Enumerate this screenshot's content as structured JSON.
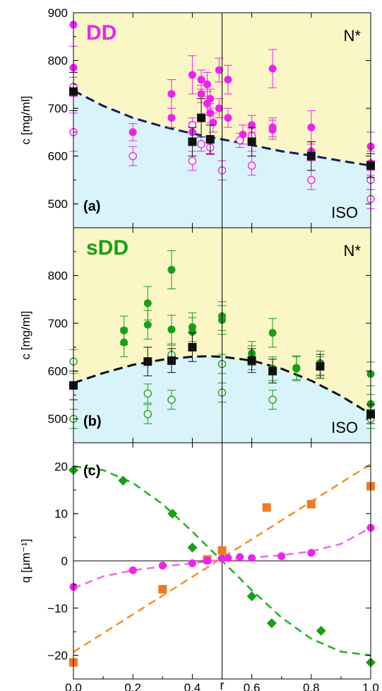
{
  "colors": {
    "nematic_bg": "#fbf6c6",
    "iso_bg": "#d9f3fb",
    "magenta": "#ee22ee",
    "green": "#17a017",
    "orange": "#f57920",
    "black": "#111111",
    "navy": "#141c60",
    "pink_fit": "#ee6fe4",
    "green_fit": "#27b327",
    "orange_fit": "#f4932c"
  },
  "shared": {
    "xlabel": "r",
    "x_ticks": [
      "0.0",
      "0.2",
      "0.4",
      "0.6",
      "0.8",
      "1.0"
    ],
    "xlim": [
      0,
      1
    ],
    "vertical_line_x": 0.5
  },
  "chart_data": [
    {
      "type": "scatter",
      "panel_label": "(a)",
      "name": "DD",
      "ylabel": "c [mg/ml]",
      "ylim": [
        450,
        900
      ],
      "y_ticks": [
        "500",
        "600",
        "700",
        "800",
        "900"
      ],
      "region_labels": {
        "upper": "N*",
        "lower": "ISO"
      },
      "series": [
        {
          "name": "",
          "marker": "filled-circle",
          "color": "magenta",
          "points": [
            {
              "x": 0.0,
              "y": 875,
              "err": 0
            },
            {
              "x": 0.0,
              "y": 785,
              "err": 45
            },
            {
              "x": 0.2,
              "y": 650,
              "err": 18
            },
            {
              "x": 0.33,
              "y": 730,
              "err": 30
            },
            {
              "x": 0.33,
              "y": 680,
              "err": 20
            },
            {
              "x": 0.4,
              "y": 770,
              "err": 40
            },
            {
              "x": 0.4,
              "y": 650,
              "err": 20
            },
            {
              "x": 0.43,
              "y": 760,
              "err": 20
            },
            {
              "x": 0.43,
              "y": 730,
              "err": 18
            },
            {
              "x": 0.45,
              "y": 750,
              "err": 25
            },
            {
              "x": 0.45,
              "y": 710,
              "err": 25
            },
            {
              "x": 0.46,
              "y": 720,
              "err": 20
            },
            {
              "x": 0.46,
              "y": 690,
              "err": 20
            },
            {
              "x": 0.47,
              "y": 670,
              "err": 20
            },
            {
              "x": 0.49,
              "y": 780,
              "err": 25
            },
            {
              "x": 0.49,
              "y": 700,
              "err": 20
            },
            {
              "x": 0.52,
              "y": 760,
              "err": 30
            },
            {
              "x": 0.52,
              "y": 680,
              "err": 20
            },
            {
              "x": 0.57,
              "y": 645,
              "err": 20
            },
            {
              "x": 0.6,
              "y": 665,
              "err": 20
            },
            {
              "x": 0.6,
              "y": 630,
              "err": 20
            },
            {
              "x": 0.67,
              "y": 783,
              "err": 40
            },
            {
              "x": 0.67,
              "y": 660,
              "err": 20
            },
            {
              "x": 0.67,
              "y": 655,
              "err": 20
            },
            {
              "x": 0.8,
              "y": 660,
              "err": 35
            },
            {
              "x": 0.8,
              "y": 610,
              "err": 20
            },
            {
              "x": 1.0,
              "y": 620,
              "err": 30
            },
            {
              "x": 1.0,
              "y": 585,
              "err": 25
            }
          ]
        },
        {
          "name": "",
          "marker": "open-circle",
          "color": "magenta",
          "points": [
            {
              "x": 0.0,
              "y": 745,
              "err": 20
            },
            {
              "x": 0.0,
              "y": 650,
              "err": 40
            },
            {
              "x": 0.2,
              "y": 600,
              "err": 20
            },
            {
              "x": 0.4,
              "y": 590,
              "err": 20
            },
            {
              "x": 0.4,
              "y": 665,
              "err": 15
            },
            {
              "x": 0.43,
              "y": 625,
              "err": 15
            },
            {
              "x": 0.46,
              "y": 618,
              "err": 15
            },
            {
              "x": 0.5,
              "y": 570,
              "err": 20
            },
            {
              "x": 0.56,
              "y": 633,
              "err": 15
            },
            {
              "x": 0.6,
              "y": 580,
              "err": 20
            },
            {
              "x": 0.6,
              "y": 642,
              "err": 15
            },
            {
              "x": 0.8,
              "y": 550,
              "err": 20
            },
            {
              "x": 1.0,
              "y": 550,
              "err": 20
            },
            {
              "x": 1.0,
              "y": 510,
              "err": 20
            }
          ]
        },
        {
          "name": "",
          "marker": "filled-square",
          "color": "black",
          "points": [
            {
              "x": 0.0,
              "y": 735,
              "err": 40
            },
            {
              "x": 0.4,
              "y": 630,
              "err": 30
            },
            {
              "x": 0.43,
              "y": 680,
              "err": 40
            },
            {
              "x": 0.46,
              "y": 635,
              "err": 30
            },
            {
              "x": 0.6,
              "y": 630,
              "err": 30
            },
            {
              "x": 0.8,
              "y": 600,
              "err": 30
            },
            {
              "x": 1.0,
              "y": 580,
              "err": 25
            }
          ]
        }
      ],
      "fit": {
        "style": "dashed",
        "color": "navy",
        "points": [
          [
            0.0,
            737
          ],
          [
            0.1,
            705
          ],
          [
            0.2,
            680
          ],
          [
            0.3,
            662
          ],
          [
            0.4,
            647
          ],
          [
            0.5,
            635
          ],
          [
            0.6,
            623
          ],
          [
            0.7,
            610
          ],
          [
            0.8,
            601
          ],
          [
            0.9,
            590
          ],
          [
            1.0,
            580
          ]
        ]
      }
    },
    {
      "type": "scatter",
      "panel_label": "(b)",
      "name": "sDD",
      "ylabel": "c [mg/ml]",
      "ylim": [
        450,
        900
      ],
      "y_ticks": [
        "500",
        "600",
        "700",
        "800"
      ],
      "region_labels": {
        "upper": "N*",
        "lower": "ISO"
      },
      "series": [
        {
          "name": "",
          "marker": "filled-circle",
          "color": "green",
          "points": [
            {
              "x": 0.17,
              "y": 685,
              "err": 30
            },
            {
              "x": 0.17,
              "y": 660,
              "err": 30
            },
            {
              "x": 0.25,
              "y": 742,
              "err": 35
            },
            {
              "x": 0.25,
              "y": 697,
              "err": 30
            },
            {
              "x": 0.33,
              "y": 812,
              "err": 40
            },
            {
              "x": 0.33,
              "y": 687,
              "err": 30
            },
            {
              "x": 0.4,
              "y": 692,
              "err": 30
            },
            {
              "x": 0.4,
              "y": 682,
              "err": 30
            },
            {
              "x": 0.5,
              "y": 715,
              "err": 30
            },
            {
              "x": 0.5,
              "y": 707,
              "err": 30
            },
            {
              "x": 0.6,
              "y": 637,
              "err": 25
            },
            {
              "x": 0.6,
              "y": 628,
              "err": 25
            },
            {
              "x": 0.67,
              "y": 680,
              "err": 30
            },
            {
              "x": 0.67,
              "y": 605,
              "err": 25
            },
            {
              "x": 0.75,
              "y": 607,
              "err": 25
            },
            {
              "x": 0.75,
              "y": 605,
              "err": 25
            },
            {
              "x": 0.83,
              "y": 617,
              "err": 25
            },
            {
              "x": 1.0,
              "y": 594,
              "err": 25
            },
            {
              "x": 1.0,
              "y": 531,
              "err": 20
            }
          ]
        },
        {
          "name": "",
          "marker": "open-circle",
          "color": "green",
          "points": [
            {
              "x": 0.0,
              "y": 620,
              "err": 25
            },
            {
              "x": 0.0,
              "y": 500,
              "err": 20
            },
            {
              "x": 0.25,
              "y": 553,
              "err": 20
            },
            {
              "x": 0.25,
              "y": 510,
              "err": 20
            },
            {
              "x": 0.33,
              "y": 634,
              "err": 20
            },
            {
              "x": 0.33,
              "y": 540,
              "err": 20
            },
            {
              "x": 0.5,
              "y": 615,
              "err": 20
            },
            {
              "x": 0.5,
              "y": 555,
              "err": 20
            },
            {
              "x": 0.67,
              "y": 540,
              "err": 20
            },
            {
              "x": 0.83,
              "y": 610,
              "err": 20
            },
            {
              "x": 1.0,
              "y": 500,
              "err": 20
            }
          ]
        },
        {
          "name": "",
          "marker": "filled-square",
          "color": "black",
          "points": [
            {
              "x": 0.0,
              "y": 570,
              "err": 30
            },
            {
              "x": 0.25,
              "y": 620,
              "err": 30
            },
            {
              "x": 0.33,
              "y": 622,
              "err": 25
            },
            {
              "x": 0.4,
              "y": 650,
              "err": 30
            },
            {
              "x": 0.6,
              "y": 622,
              "err": 25
            },
            {
              "x": 0.67,
              "y": 600,
              "err": 25
            },
            {
              "x": 0.83,
              "y": 610,
              "err": 25
            },
            {
              "x": 1.0,
              "y": 510,
              "err": 20
            }
          ]
        }
      ],
      "fit": {
        "style": "dashed",
        "color": "black",
        "points": [
          [
            0.0,
            575
          ],
          [
            0.1,
            596
          ],
          [
            0.2,
            613
          ],
          [
            0.3,
            624
          ],
          [
            0.4,
            630
          ],
          [
            0.45,
            631
          ],
          [
            0.5,
            630
          ],
          [
            0.6,
            622
          ],
          [
            0.7,
            605
          ],
          [
            0.8,
            580
          ],
          [
            0.9,
            548
          ],
          [
            1.0,
            510
          ]
        ]
      }
    },
    {
      "type": "scatter",
      "panel_label": "(c)",
      "ylabel": "q  [μm⁻¹]",
      "ylim": [
        -25,
        25
      ],
      "y_ticks": [
        "20",
        "10",
        "0",
        "−10",
        "−20"
      ],
      "y_tick_values": [
        20,
        10,
        0,
        -10,
        -20
      ],
      "series": [
        {
          "name": "",
          "marker": "diamond",
          "color": "green",
          "points": [
            [
              0.0,
              19.2
            ],
            [
              0.167,
              17
            ],
            [
              0.333,
              10
            ],
            [
              0.4,
              2.8
            ],
            [
              0.5,
              0.6
            ],
            [
              0.6,
              -7.5
            ],
            [
              0.667,
              -13.2
            ],
            [
              0.833,
              -14.8
            ],
            [
              1.0,
              -21.5
            ]
          ]
        },
        {
          "name": "",
          "marker": "filled-square",
          "color": "orange",
          "points": [
            [
              0.0,
              -21.5
            ],
            [
              0.3,
              -6
            ],
            [
              0.45,
              0.3
            ],
            [
              0.5,
              2.2
            ],
            [
              0.65,
              11.3
            ],
            [
              0.8,
              12
            ],
            [
              1.0,
              15.8
            ]
          ]
        },
        {
          "name": "",
          "marker": "filled-circle",
          "color": "magenta",
          "points": [
            [
              0.0,
              -5.5
            ],
            [
              0.2,
              -2
            ],
            [
              0.3,
              -1
            ],
            [
              0.4,
              -0.5
            ],
            [
              0.45,
              0
            ],
            [
              0.5,
              0.5
            ],
            [
              0.52,
              0.6
            ],
            [
              0.56,
              0.8
            ],
            [
              0.6,
              0.6
            ],
            [
              0.7,
              1
            ],
            [
              0.8,
              1.7
            ],
            [
              1.0,
              7
            ]
          ]
        }
      ],
      "fits": [
        {
          "color": "green_fit",
          "points": [
            [
              0.0,
              20
            ],
            [
              0.1,
              19.2
            ],
            [
              0.2,
              16.5
            ],
            [
              0.3,
              12
            ],
            [
              0.4,
              6.2
            ],
            [
              0.5,
              0
            ],
            [
              0.6,
              -6.2
            ],
            [
              0.7,
              -12
            ],
            [
              0.8,
              -16.5
            ],
            [
              0.9,
              -19.2
            ],
            [
              1.0,
              -20
            ]
          ]
        },
        {
          "color": "orange_fit",
          "points": [
            [
              0.0,
              -19.3
            ],
            [
              0.5,
              0.6
            ],
            [
              1.0,
              20.5
            ]
          ]
        },
        {
          "color": "pink_fit",
          "points": [
            [
              0.0,
              -5.8
            ],
            [
              0.1,
              -3.3
            ],
            [
              0.2,
              -2
            ],
            [
              0.3,
              -1.2
            ],
            [
              0.4,
              -0.5
            ],
            [
              0.5,
              0.2
            ],
            [
              0.6,
              0.7
            ],
            [
              0.7,
              1.2
            ],
            [
              0.8,
              2.0
            ],
            [
              0.9,
              3.6
            ],
            [
              1.0,
              7.0
            ]
          ]
        }
      ]
    }
  ]
}
